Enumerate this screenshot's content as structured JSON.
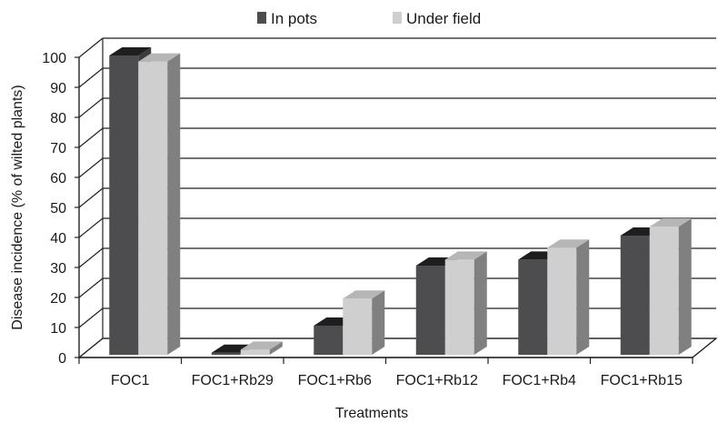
{
  "chart_data": {
    "type": "bar",
    "title": "",
    "xlabel": "Treatments",
    "ylabel": "Disease incidence (% of wilted plants)",
    "ylim": [
      0,
      100
    ],
    "yticks": [
      "0",
      "10",
      "20",
      "30",
      "40",
      "50",
      "60",
      "70",
      "80",
      "90",
      "100"
    ],
    "categories": [
      "FOC1",
      "FOC1+Rb29",
      "FOC1+Rb6",
      "FOC1+Rb12",
      "FOC1+Rb4",
      "FOC1+Rb15"
    ],
    "series": [
      {
        "name": "In pots",
        "values": [
          100,
          1,
          10,
          30,
          32,
          40
        ],
        "color": "#4d4d4f"
      },
      {
        "name": "Under field",
        "values": [
          98,
          2,
          19,
          32,
          36,
          43
        ],
        "color": "#cfcfcf"
      }
    ],
    "grid": true,
    "legend_position": "top-center",
    "style": "3d"
  }
}
